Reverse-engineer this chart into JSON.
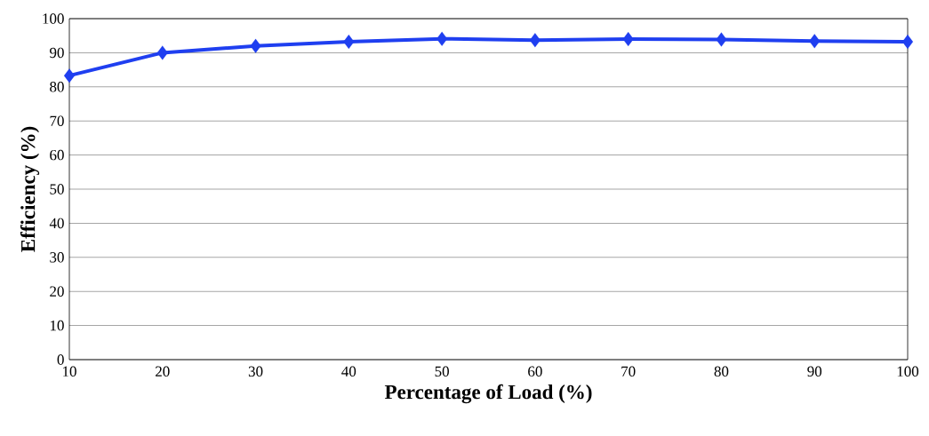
{
  "chart_data": {
    "type": "line",
    "xlabel": "Percentage of Load (%)",
    "ylabel": "Efficiency (%)",
    "x": [
      10,
      20,
      30,
      40,
      50,
      60,
      70,
      80,
      90,
      100
    ],
    "series": [
      {
        "color": "#1f3ff0",
        "values": [
          83.3,
          90,
          92,
          93.2,
          94.1,
          93.7,
          94,
          93.9,
          93.4,
          93.2
        ]
      }
    ],
    "xlim": [
      10,
      100
    ],
    "xticks": [
      10,
      20,
      30,
      40,
      50,
      60,
      70,
      80,
      90,
      100
    ],
    "ylim": [
      0,
      100
    ],
    "yticks": [
      0,
      10,
      20,
      30,
      40,
      50,
      60,
      70,
      80,
      90,
      100
    ],
    "grid": "y",
    "marker": "diamond",
    "line_style": "solid"
  }
}
